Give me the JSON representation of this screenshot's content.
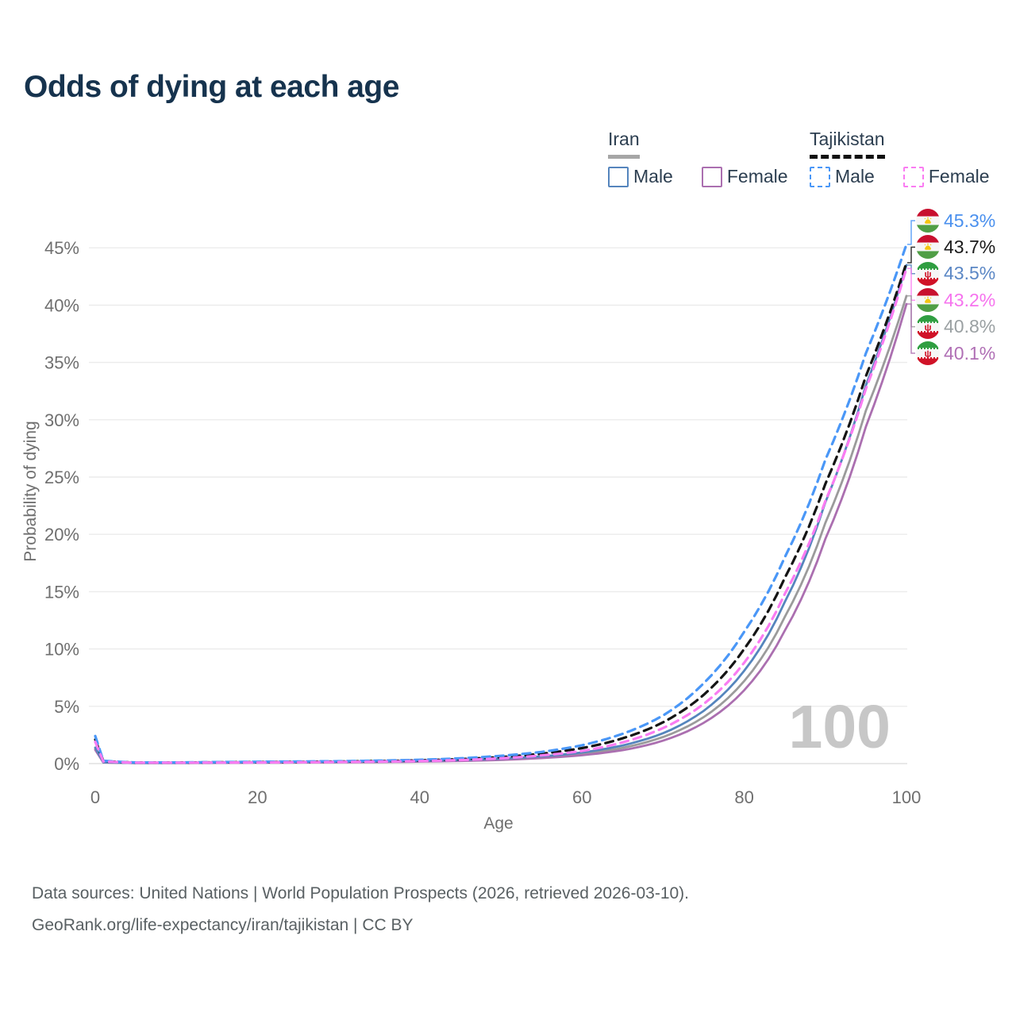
{
  "title": "Odds of dying at each age",
  "watermark": "100",
  "footer": {
    "line1": "Data sources: United Nations | World Population Prospects (2026, retrieved 2026-03-10).",
    "line2": "GeoRank.org/life-expectancy/iran/tajikistan | CC BY"
  },
  "icons": {
    "iran_flag": "flag-iran-icon",
    "tajikistan_flag": "flag-tajikistan-icon"
  },
  "colors": {
    "title_text": "#16334e",
    "legend_text": "#2c3e50",
    "axis_text": "#6f6f6f",
    "gridline": "#ebebeb",
    "zero_gridline": "#e0e0e0",
    "watermark": "#c7c7c7",
    "footer_text": "#596063"
  },
  "legend": {
    "groups": [
      {
        "label": "Iran",
        "underline": {
          "style": "solid",
          "color": "#a6a6a6"
        },
        "items": [
          {
            "label": "Male",
            "swatch": {
              "style": "solid",
              "color": "#5585bd"
            }
          },
          {
            "label": "Female",
            "swatch": {
              "style": "solid",
              "color": "#ab6fb0"
            }
          }
        ]
      },
      {
        "label": "Tajikistan",
        "underline": {
          "style": "dashed",
          "color": "#111111"
        },
        "items": [
          {
            "label": "Male",
            "swatch": {
              "style": "dashed",
              "color": "#4a97f7"
            }
          },
          {
            "label": "Female",
            "swatch": {
              "style": "dashed",
              "color": "#fa7cf2"
            }
          }
        ]
      }
    ]
  },
  "chart_data": {
    "type": "line",
    "title": "Odds of dying at each age",
    "xlabel": "Age",
    "ylabel": "Probability of dying",
    "xlim": [
      0,
      100
    ],
    "ylim_pct": [
      0,
      47
    ],
    "x_ticks": [
      0,
      20,
      40,
      60,
      80,
      100
    ],
    "y_ticks": [
      {
        "value": 0,
        "label": "0%"
      },
      {
        "value": 5,
        "label": "5%"
      },
      {
        "value": 10,
        "label": "10%"
      },
      {
        "value": 15,
        "label": "15%"
      },
      {
        "value": 20,
        "label": "20%"
      },
      {
        "value": 25,
        "label": "25%"
      },
      {
        "value": 30,
        "label": "30%"
      },
      {
        "value": 35,
        "label": "35%"
      },
      {
        "value": 40,
        "label": "40%"
      },
      {
        "value": 45,
        "label": "45%"
      }
    ],
    "grid": true,
    "legend_position": "top-right",
    "age_counter": "100",
    "series": [
      {
        "name": "Iran Both sexes",
        "country": "Iran",
        "sex": "Both",
        "flag": "iran",
        "color": "#9b9b9b",
        "dash": false,
        "end_label": "40.8%",
        "label_color": "#9aa0a2",
        "points_age_pct": [
          [
            0,
            1.3
          ],
          [
            1,
            0.11
          ],
          [
            5,
            0.05
          ],
          [
            10,
            0.06
          ],
          [
            15,
            0.08
          ],
          [
            20,
            0.1
          ],
          [
            25,
            0.12
          ],
          [
            30,
            0.14
          ],
          [
            35,
            0.16
          ],
          [
            40,
            0.2
          ],
          [
            45,
            0.27
          ],
          [
            50,
            0.37
          ],
          [
            55,
            0.55
          ],
          [
            60,
            0.84
          ],
          [
            65,
            1.37
          ],
          [
            70,
            2.32
          ],
          [
            75,
            4.05
          ],
          [
            80,
            7.2
          ],
          [
            85,
            12.8
          ],
          [
            90,
            21.0
          ],
          [
            95,
            30.8
          ],
          [
            100,
            40.8
          ]
        ]
      },
      {
        "name": "Iran Female",
        "country": "Iran",
        "sex": "Female",
        "flag": "iran",
        "color": "#ab6fb0",
        "dash": false,
        "end_label": "40.1%",
        "label_color": "#b06fb5",
        "points_age_pct": [
          [
            0,
            1.2
          ],
          [
            1,
            0.1
          ],
          [
            5,
            0.05
          ],
          [
            10,
            0.05
          ],
          [
            15,
            0.06
          ],
          [
            20,
            0.08
          ],
          [
            25,
            0.09
          ],
          [
            30,
            0.11
          ],
          [
            35,
            0.13
          ],
          [
            40,
            0.17
          ],
          [
            45,
            0.23
          ],
          [
            50,
            0.32
          ],
          [
            55,
            0.48
          ],
          [
            60,
            0.73
          ],
          [
            65,
            1.17
          ],
          [
            70,
            2.0
          ],
          [
            75,
            3.55
          ],
          [
            80,
            6.4
          ],
          [
            85,
            11.6
          ],
          [
            90,
            19.6
          ],
          [
            95,
            29.4
          ],
          [
            100,
            40.1
          ]
        ]
      },
      {
        "name": "Iran Male",
        "country": "Iran",
        "sex": "Male",
        "flag": "iran",
        "color": "#5585bd",
        "dash": false,
        "end_label": "43.5%",
        "label_color": "#5b87c5",
        "points_age_pct": [
          [
            0,
            1.4
          ],
          [
            1,
            0.12
          ],
          [
            5,
            0.06
          ],
          [
            10,
            0.07
          ],
          [
            15,
            0.09
          ],
          [
            20,
            0.12
          ],
          [
            25,
            0.14
          ],
          [
            30,
            0.16
          ],
          [
            35,
            0.19
          ],
          [
            40,
            0.23
          ],
          [
            45,
            0.31
          ],
          [
            50,
            0.43
          ],
          [
            55,
            0.63
          ],
          [
            60,
            0.97
          ],
          [
            65,
            1.58
          ],
          [
            70,
            2.65
          ],
          [
            75,
            4.6
          ],
          [
            80,
            8.1
          ],
          [
            85,
            14.1
          ],
          [
            90,
            22.8
          ],
          [
            95,
            33.0
          ],
          [
            100,
            43.5
          ]
        ]
      },
      {
        "name": "Tajikistan Both sexes",
        "country": "Tajikistan",
        "sex": "Both",
        "flag": "tajikistan",
        "color": "#141414",
        "dash": true,
        "end_label": "43.7%",
        "label_color": "#1a1a1a",
        "points_age_pct": [
          [
            0,
            2.1
          ],
          [
            1,
            0.22
          ],
          [
            5,
            0.09
          ],
          [
            10,
            0.09
          ],
          [
            15,
            0.11
          ],
          [
            20,
            0.13
          ],
          [
            25,
            0.15
          ],
          [
            30,
            0.18
          ],
          [
            35,
            0.22
          ],
          [
            40,
            0.28
          ],
          [
            45,
            0.39
          ],
          [
            50,
            0.57
          ],
          [
            55,
            0.86
          ],
          [
            60,
            1.35
          ],
          [
            65,
            2.2
          ],
          [
            70,
            3.6
          ],
          [
            75,
            6.0
          ],
          [
            80,
            10.0
          ],
          [
            85,
            16.2
          ],
          [
            90,
            24.4
          ],
          [
            95,
            33.8
          ],
          [
            100,
            43.7
          ]
        ]
      },
      {
        "name": "Tajikistan Male",
        "country": "Tajikistan",
        "sex": "Male",
        "flag": "tajikistan",
        "color": "#4a97f7",
        "dash": true,
        "end_label": "45.3%",
        "label_color": "#4a90ee",
        "points_age_pct": [
          [
            0,
            2.4
          ],
          [
            1,
            0.25
          ],
          [
            5,
            0.1
          ],
          [
            10,
            0.1
          ],
          [
            15,
            0.13
          ],
          [
            20,
            0.16
          ],
          [
            25,
            0.18
          ],
          [
            30,
            0.21
          ],
          [
            35,
            0.26
          ],
          [
            40,
            0.33
          ],
          [
            45,
            0.46
          ],
          [
            50,
            0.68
          ],
          [
            55,
            1.02
          ],
          [
            60,
            1.6
          ],
          [
            65,
            2.6
          ],
          [
            70,
            4.2
          ],
          [
            75,
            7.0
          ],
          [
            80,
            11.5
          ],
          [
            85,
            18.0
          ],
          [
            90,
            26.5
          ],
          [
            95,
            35.8
          ],
          [
            100,
            45.3
          ]
        ]
      },
      {
        "name": "Tajikistan Female",
        "country": "Tajikistan",
        "sex": "Female",
        "flag": "tajikistan",
        "color": "#fa7cf2",
        "dash": true,
        "end_label": "43.2%",
        "label_color": "#f673ee",
        "points_age_pct": [
          [
            0,
            1.9
          ],
          [
            1,
            0.19
          ],
          [
            5,
            0.08
          ],
          [
            10,
            0.08
          ],
          [
            15,
            0.09
          ],
          [
            20,
            0.1
          ],
          [
            25,
            0.12
          ],
          [
            30,
            0.14
          ],
          [
            35,
            0.17
          ],
          [
            40,
            0.22
          ],
          [
            45,
            0.31
          ],
          [
            50,
            0.46
          ],
          [
            55,
            0.71
          ],
          [
            60,
            1.1
          ],
          [
            65,
            1.85
          ],
          [
            70,
            3.1
          ],
          [
            75,
            5.2
          ],
          [
            80,
            8.8
          ],
          [
            85,
            14.8
          ],
          [
            90,
            22.9
          ],
          [
            95,
            32.7
          ],
          [
            100,
            43.2
          ]
        ]
      }
    ]
  }
}
